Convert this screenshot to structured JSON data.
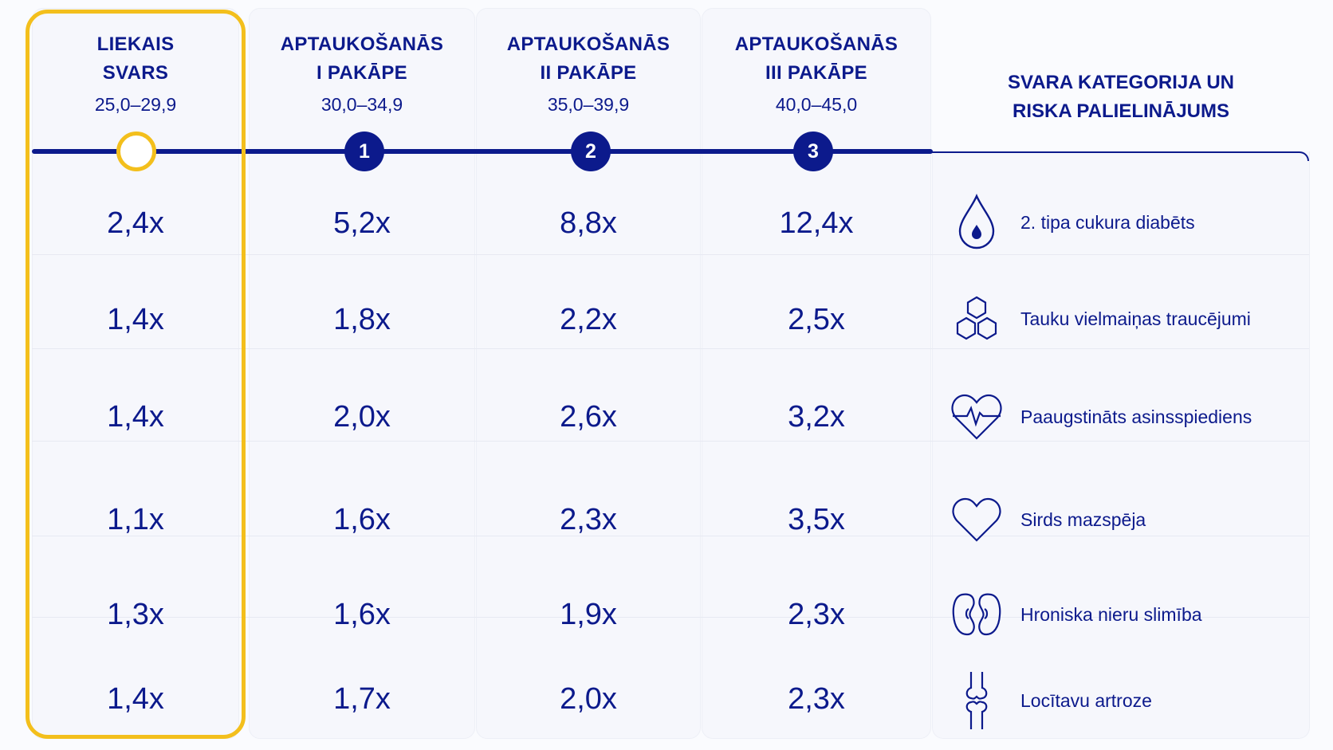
{
  "columns": [
    {
      "title_line1": "LIEKAIS",
      "title_line2": "SVARS",
      "range": "25,0–29,9",
      "marker": ""
    },
    {
      "title_line1": "APTAUKOŠANĀS",
      "title_line2": "I PAKĀPE",
      "range": "30,0–34,9",
      "marker": "1"
    },
    {
      "title_line1": "APTAUKOŠANĀS",
      "title_line2": "II PAKĀPE",
      "range": "35,0–39,9",
      "marker": "2"
    },
    {
      "title_line1": "APTAUKOŠANĀS",
      "title_line2": "III PAKĀPE",
      "range": "40,0–45,0",
      "marker": "3"
    }
  ],
  "category_header": {
    "line1": "SVARA KATEGORIJA UN",
    "line2": "RISKA PALIELINĀJUMS"
  },
  "rows": [
    {
      "condition": "2. tipa cukura diabēts",
      "icon": "drop-icon",
      "values": [
        "2,4x",
        "5,2x",
        "8,8x",
        "12,4x"
      ]
    },
    {
      "condition": "Tauku vielmaiņas traucējumi",
      "icon": "hexagon-molecule-icon",
      "values": [
        "1,4x",
        "1,8x",
        "2,2x",
        "2,5x"
      ]
    },
    {
      "condition": "Paaugstināts asinsspiediens",
      "icon": "heart-pulse-icon",
      "values": [
        "1,4x",
        "2,0x",
        "2,6x",
        "3,2x"
      ]
    },
    {
      "condition": "Sirds mazspēja",
      "icon": "heart-icon",
      "values": [
        "1,1x",
        "1,6x",
        "2,3x",
        "3,5x"
      ]
    },
    {
      "condition": "Hroniska nieru slimība",
      "icon": "kidney-icon",
      "values": [
        "1,3x",
        "1,6x",
        "1,9x",
        "2,3x"
      ]
    },
    {
      "condition": "Locītavu artroze",
      "icon": "knee-joint-icon",
      "values": [
        "1,4x",
        "1,7x",
        "2,0x",
        "2,3x"
      ]
    }
  ],
  "colors": {
    "navy": "#0c1a8c",
    "highlight": "#f3bf1c"
  }
}
